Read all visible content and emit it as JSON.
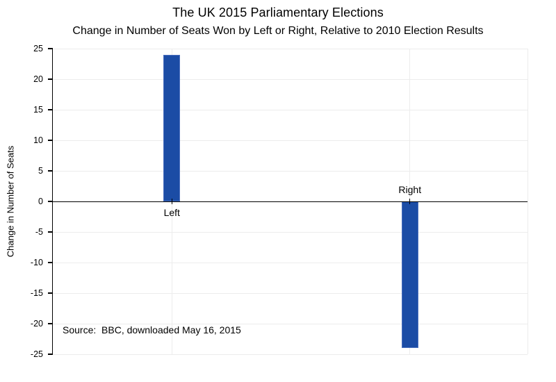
{
  "chart": {
    "title": "The UK 2015 Parliamentary Elections",
    "subtitle": "Change in Number of Seats Won by Left or Right, Relative to 2010 Election Results",
    "ylabel": "Change in Number of Seats",
    "source": "Source:  BBC, downloaded May 16, 2015"
  },
  "chart_data": {
    "type": "bar",
    "categories": [
      "Left",
      "Right"
    ],
    "values": [
      24,
      -24
    ],
    "title": "The UK 2015 Parliamentary Elections",
    "subtitle": "Change in Number of Seats Won by Left or Right, Relative to 2010 Election Results",
    "xlabel": "",
    "ylabel": "Change in Number of Seats",
    "ylim": [
      -25,
      25
    ],
    "ytick_step": 5,
    "bar_color": "#1b4ca5",
    "bar_edge_color": "#4a6fbe",
    "gridline_color": "#ececec",
    "axis_color": "#000000",
    "grid": true,
    "legend": "none",
    "annotations": [
      "Source:  BBC, downloaded May 16, 2015"
    ]
  }
}
